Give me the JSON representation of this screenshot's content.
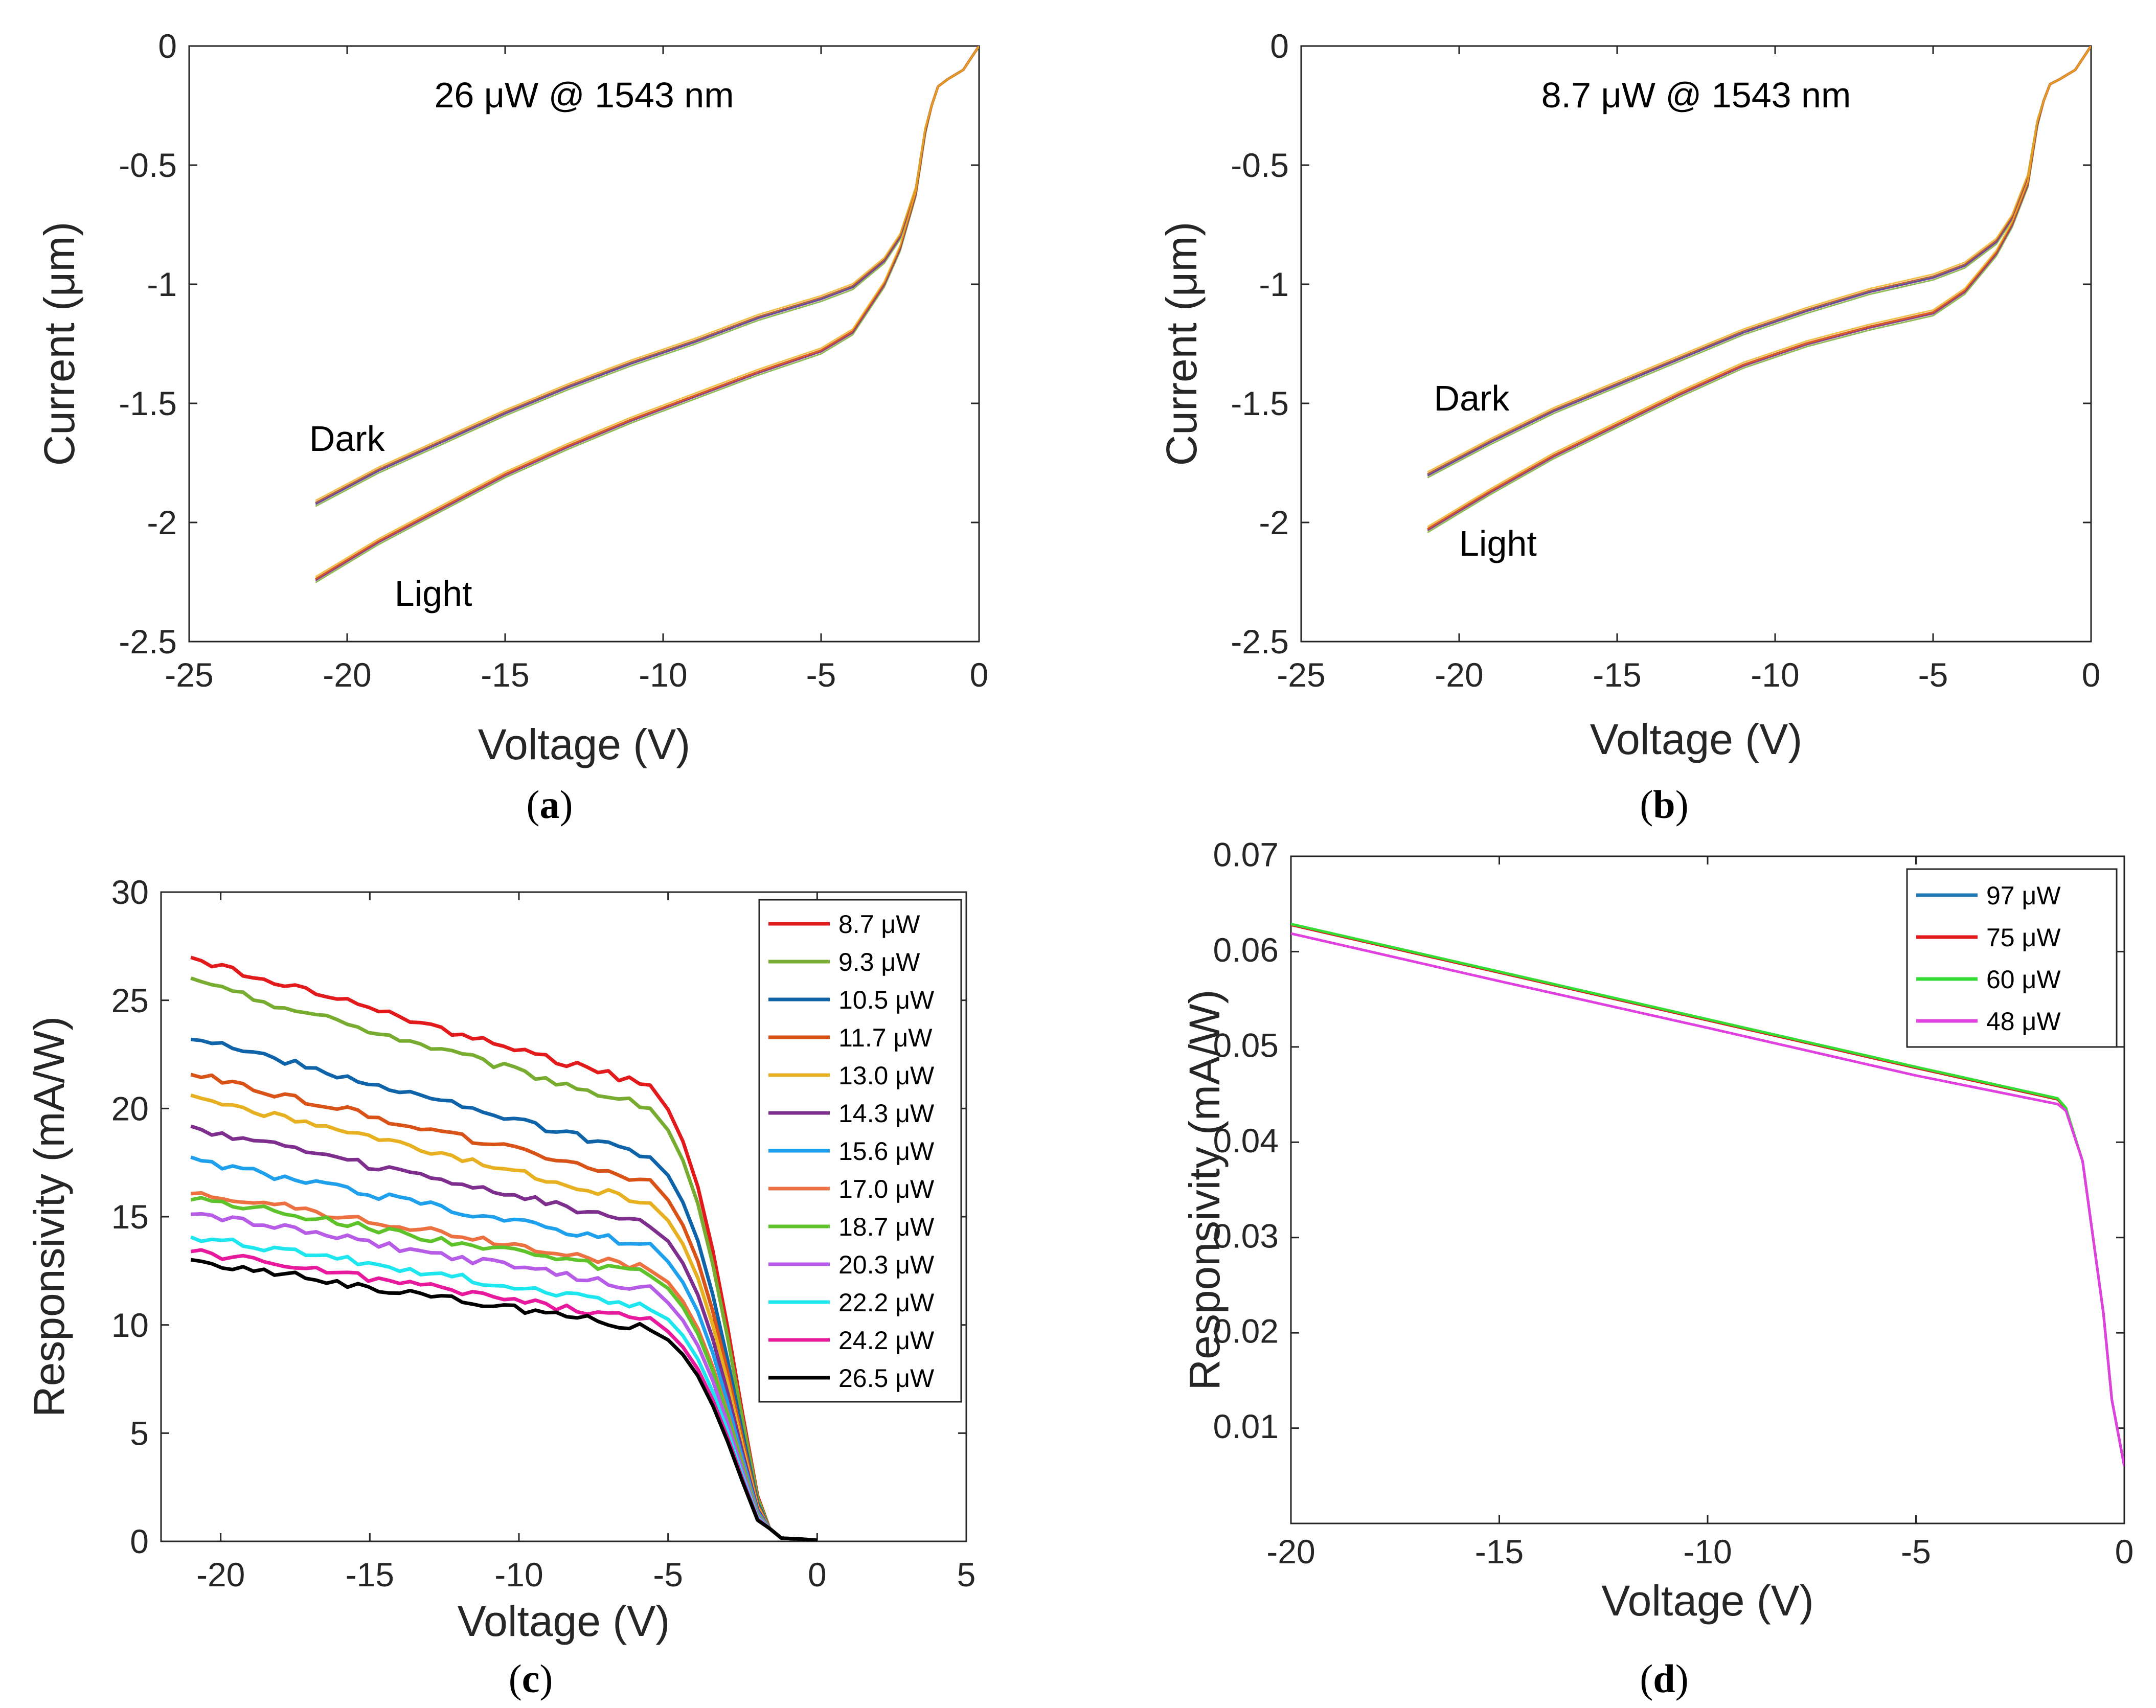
{
  "figure": {
    "panels_label_open": "(",
    "panels_label_close": ")"
  },
  "chart_data": [
    {
      "id": "a",
      "type": "line",
      "panel_label": "a",
      "title": "26 μW @ 1543 nm",
      "xlabel": "Voltage (V)",
      "ylabel": "Current (μm)",
      "xlim": [
        -25,
        0
      ],
      "ylim": [
        -2.5,
        0
      ],
      "xticks": [
        -25,
        -20,
        -15,
        -10,
        -5,
        0
      ],
      "yticks": [
        0,
        -0.5,
        -1,
        -1.5,
        -2,
        -2.5
      ],
      "xtick_labels": [
        "-25",
        "-20",
        "-15",
        "-10",
        "-5",
        "0"
      ],
      "ytick_labels": [
        "0",
        "-0.5",
        "-1",
        "-1.5",
        "-2",
        "-2.5"
      ],
      "annotations": [
        {
          "text": "Dark",
          "x": -21.2,
          "y": -1.7
        },
        {
          "text": "Light",
          "x": -18.5,
          "y": -2.35
        }
      ],
      "series": [
        {
          "name": "Dark",
          "color": "#2a8fbd",
          "x": [
            -21,
            -19,
            -17,
            -15,
            -13,
            -11,
            -9,
            -7,
            -5,
            -4,
            -3,
            -2.5,
            -2,
            -1.7,
            -1.5,
            -1.3,
            -1,
            -0.5,
            0
          ],
          "y": [
            -1.92,
            -1.78,
            -1.66,
            -1.54,
            -1.43,
            -1.33,
            -1.24,
            -1.14,
            -1.06,
            -1.01,
            -0.9,
            -0.8,
            -0.6,
            -0.35,
            -0.25,
            -0.17,
            -0.14,
            -0.1,
            0
          ]
        },
        {
          "name": "Light",
          "color": "#e0762a",
          "x": [
            -21,
            -19,
            -17,
            -15,
            -13,
            -11,
            -9,
            -7,
            -5,
            -4,
            -3,
            -2.5,
            -2,
            -1.7,
            -1.5,
            -1.3,
            -1,
            -0.5,
            0
          ],
          "y": [
            -2.24,
            -2.08,
            -1.94,
            -1.8,
            -1.68,
            -1.57,
            -1.47,
            -1.37,
            -1.28,
            -1.2,
            -1.0,
            -0.85,
            -0.62,
            -0.36,
            -0.25,
            -0.17,
            -0.14,
            -0.1,
            0
          ]
        }
      ]
    },
    {
      "id": "b",
      "type": "line",
      "panel_label": "b",
      "title": "8.7 μW @ 1543 nm",
      "xlabel": "Voltage (V)",
      "ylabel": "Current (μm)",
      "xlim": [
        -25,
        0
      ],
      "ylim": [
        -2.5,
        0
      ],
      "xticks": [
        -25,
        -20,
        -15,
        -10,
        -5,
        0
      ],
      "yticks": [
        0,
        -0.5,
        -1,
        -1.5,
        -2,
        -2.5
      ],
      "xtick_labels": [
        "-25",
        "-20",
        "-15",
        "-10",
        "-5",
        "0"
      ],
      "ytick_labels": [
        "0",
        "-0.5",
        "-1",
        "-1.5",
        "-2",
        "-2.5"
      ],
      "annotations": [
        {
          "text": "Dark",
          "x": -20.8,
          "y": -1.53
        },
        {
          "text": "Light",
          "x": -20.0,
          "y": -2.14
        }
      ],
      "series": [
        {
          "name": "Dark",
          "color": "#2a8fbd",
          "x": [
            -21,
            -19,
            -17,
            -15,
            -13,
            -11,
            -9,
            -7,
            -5,
            -4,
            -3,
            -2.5,
            -2,
            -1.7,
            -1.5,
            -1.3,
            -1,
            -0.5,
            0
          ],
          "y": [
            -1.8,
            -1.66,
            -1.53,
            -1.42,
            -1.31,
            -1.2,
            -1.11,
            -1.03,
            -0.97,
            -0.92,
            -0.82,
            -0.72,
            -0.55,
            -0.32,
            -0.23,
            -0.16,
            -0.14,
            -0.1,
            0
          ]
        },
        {
          "name": "Light",
          "color": "#e0762a",
          "x": [
            -21,
            -19,
            -17,
            -15,
            -13,
            -11,
            -9,
            -7,
            -5,
            -4,
            -3,
            -2.5,
            -2,
            -1.7,
            -1.5,
            -1.3,
            -1,
            -0.5,
            0
          ],
          "y": [
            -2.03,
            -1.87,
            -1.72,
            -1.59,
            -1.46,
            -1.34,
            -1.25,
            -1.18,
            -1.12,
            -1.03,
            -0.87,
            -0.75,
            -0.58,
            -0.33,
            -0.23,
            -0.16,
            -0.14,
            -0.1,
            0
          ]
        }
      ]
    },
    {
      "id": "c",
      "type": "line",
      "panel_label": "c",
      "title": "",
      "xlabel": "Voltage (V)",
      "ylabel": "Responsivity (mA/W)",
      "xlim": [
        -22,
        5
      ],
      "ylim": [
        0,
        30
      ],
      "xticks": [
        -20,
        -15,
        -10,
        -5,
        0,
        5
      ],
      "yticks": [
        0,
        5,
        10,
        15,
        20,
        25,
        30
      ],
      "xtick_labels": [
        "-20",
        "-15",
        "-10",
        "-5",
        "0",
        "5"
      ],
      "ytick_labels": [
        "0",
        "5",
        "10",
        "15",
        "20",
        "25",
        "30"
      ],
      "legend_position": "top-right",
      "series": [
        {
          "name": "8.7 μW",
          "color": "#e31a1c",
          "start": 26.9,
          "knee": 21.0
        },
        {
          "name": "9.3 μW",
          "color": "#77ac30",
          "start": 25.9,
          "knee": 20.0
        },
        {
          "name": "10.5 μW",
          "color": "#0f63a8",
          "start": 23.3,
          "knee": 17.8
        },
        {
          "name": "11.7 μW",
          "color": "#d95319",
          "start": 21.6,
          "knee": 16.6
        },
        {
          "name": "13.0 μW",
          "color": "#e6b020",
          "start": 20.6,
          "knee": 15.6
        },
        {
          "name": "14.3 μW",
          "color": "#7e2f8e",
          "start": 19.1,
          "knee": 14.6
        },
        {
          "name": "15.6 μW",
          "color": "#1fa0ec",
          "start": 17.6,
          "knee": 13.6
        },
        {
          "name": "17.0 μW",
          "color": "#ec7040",
          "start": 16.2,
          "knee": 12.6
        },
        {
          "name": "18.7 μW",
          "color": "#5ec22a",
          "start": 15.9,
          "knee": 12.3
        },
        {
          "name": "20.3 μW",
          "color": "#b65ce6",
          "start": 15.2,
          "knee": 11.6
        },
        {
          "name": "22.2 μW",
          "color": "#1ee6ee",
          "start": 14.1,
          "knee": 10.8
        },
        {
          "name": "24.2 μW",
          "color": "#e8199c",
          "start": 13.4,
          "knee": 10.2
        },
        {
          "name": "26.5 μW",
          "color": "#000000",
          "start": 13.0,
          "knee": 9.8
        }
      ]
    },
    {
      "id": "d",
      "type": "line",
      "panel_label": "d",
      "title": "",
      "xlabel": "Voltage (V)",
      "ylabel": "Responsivity (mA/W)",
      "xlim": [
        -20,
        0
      ],
      "ylim": [
        0,
        0.07
      ],
      "xticks": [
        -20,
        -15,
        -10,
        -5,
        0
      ],
      "yticks": [
        0.01,
        0.02,
        0.03,
        0.04,
        0.05,
        0.06,
        0.07
      ],
      "xtick_labels": [
        "-20",
        "-15",
        "-10",
        "-5",
        "0"
      ],
      "ytick_labels": [
        "0.01",
        "0.02",
        "0.03",
        "0.04",
        "0.05",
        "0.06",
        "0.07"
      ],
      "legend_position": "top-right",
      "series": [
        {
          "name": "97 μW",
          "color": "#1f77b4",
          "x": [
            -20,
            -17,
            -15,
            -10,
            -5,
            -1.6,
            -1.4,
            -1.0,
            -0.5,
            -0.3,
            0
          ],
          "y": [
            0.0628,
            0.0598,
            0.0578,
            0.0528,
            0.0478,
            0.0445,
            0.0435,
            0.038,
            0.022,
            0.013,
            0.006
          ]
        },
        {
          "name": "75 μW",
          "color": "#e31a1c",
          "x": [
            -20,
            -17,
            -15,
            -10,
            -5,
            -1.6,
            -1.4,
            -1.0,
            -0.5,
            -0.3,
            0
          ],
          "y": [
            0.0628,
            0.0598,
            0.0578,
            0.0528,
            0.0478,
            0.0445,
            0.0435,
            0.038,
            0.022,
            0.013,
            0.006
          ]
        },
        {
          "name": "60 μW",
          "color": "#33dd33",
          "x": [
            -20,
            -17,
            -15,
            -10,
            -5,
            -1.6,
            -1.4,
            -1.0,
            -0.5,
            -0.3,
            0
          ],
          "y": [
            0.0629,
            0.0599,
            0.0579,
            0.0529,
            0.0479,
            0.0446,
            0.0436,
            0.038,
            0.022,
            0.013,
            0.006
          ]
        },
        {
          "name": "48 μW",
          "color": "#e040e0",
          "x": [
            -20,
            -17,
            -15,
            -10,
            -5,
            -1.6,
            -1.4,
            -1.0,
            -0.5,
            -0.3,
            0
          ],
          "y": [
            0.0619,
            0.0589,
            0.0569,
            0.052,
            0.047,
            0.044,
            0.0433,
            0.038,
            0.022,
            0.013,
            0.006
          ]
        }
      ]
    }
  ]
}
